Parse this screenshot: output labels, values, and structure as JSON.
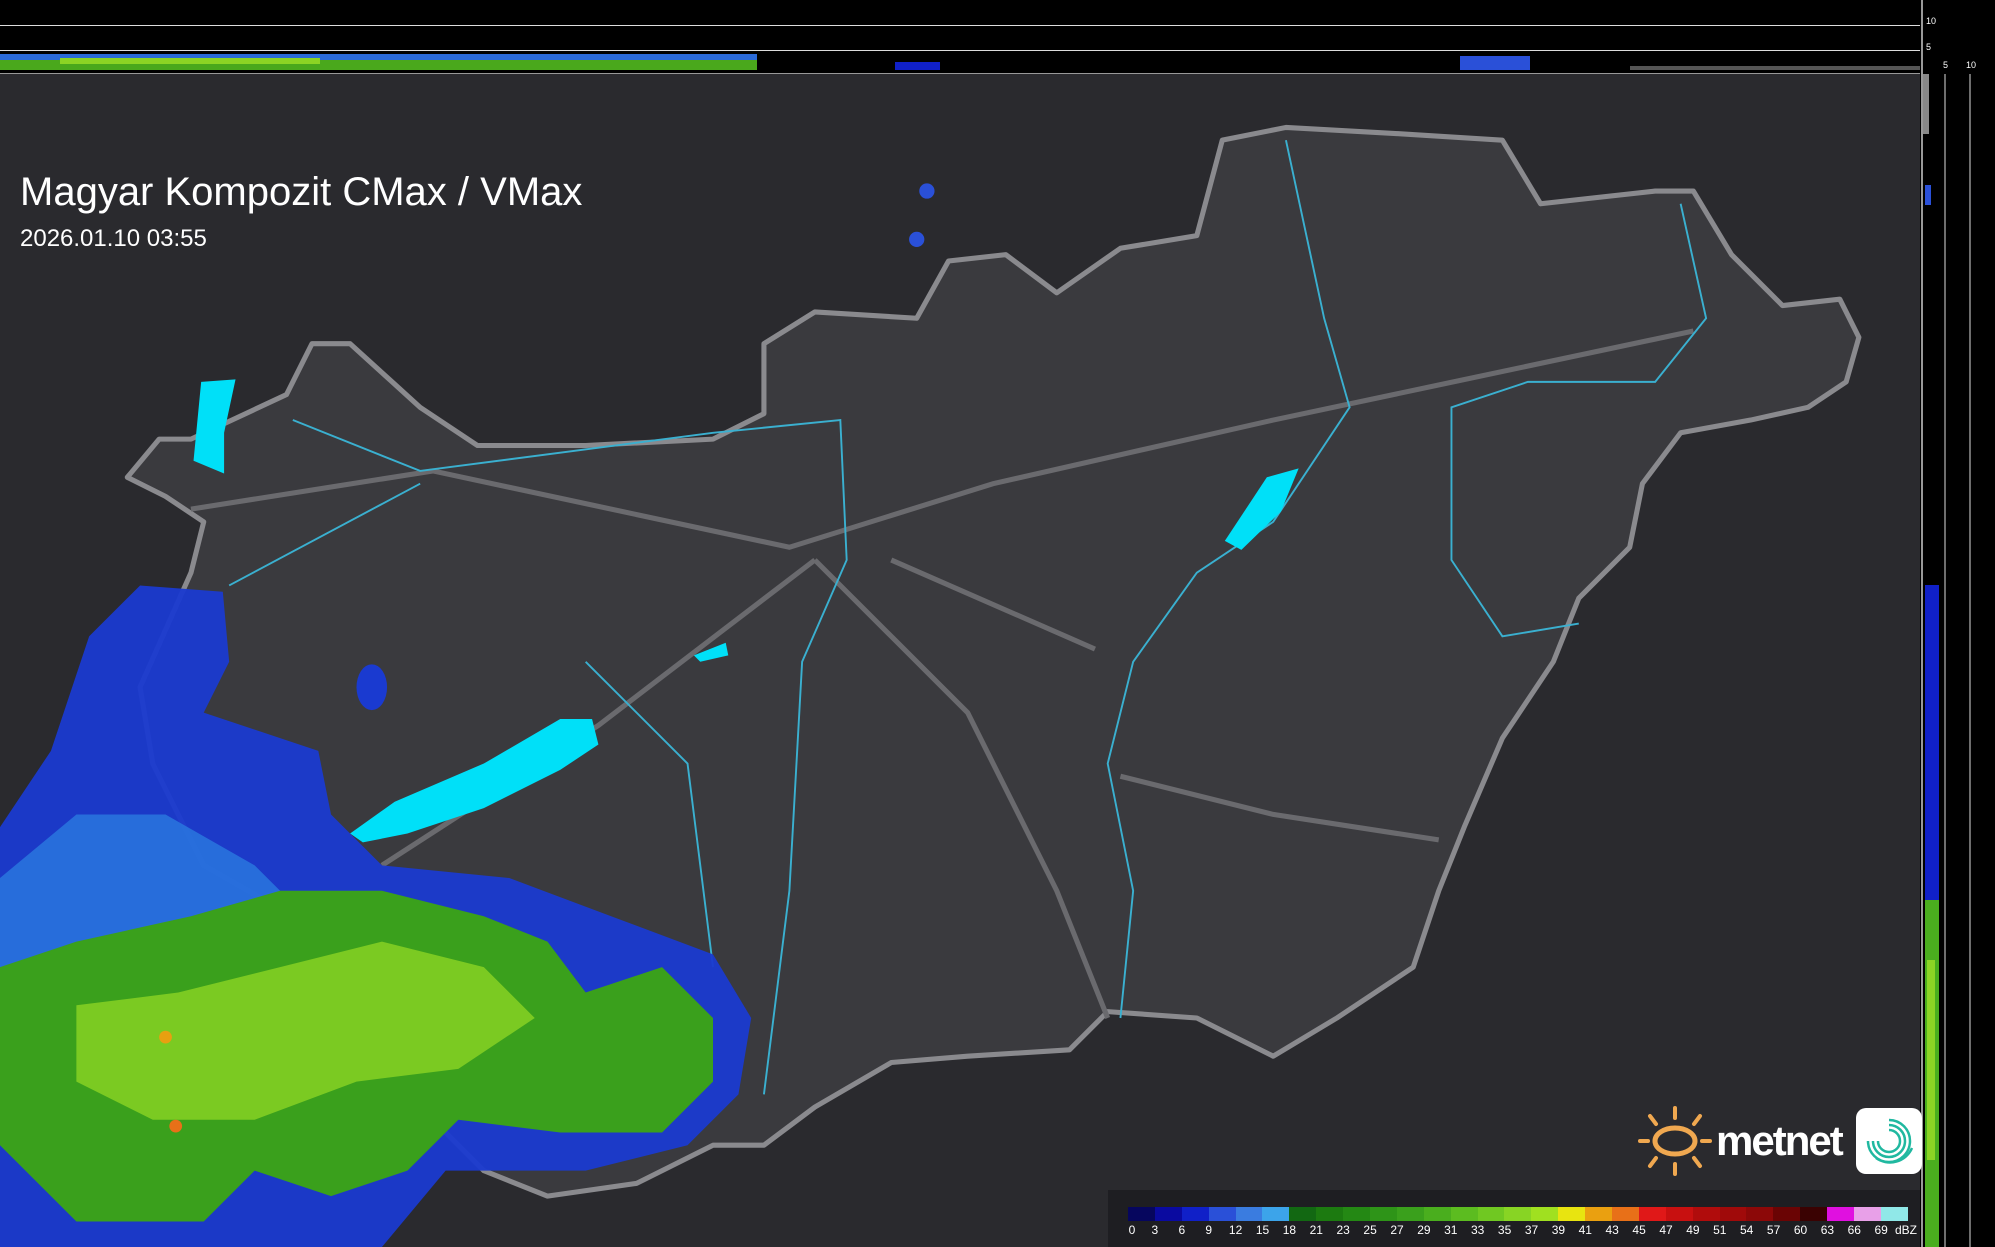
{
  "header": {
    "title": "Magyar Kompozit CMax / VMax",
    "timestamp": "2026.01.10 03:55"
  },
  "profile_axes": {
    "top_ticks": [
      "10",
      "5"
    ],
    "right_ticks": [
      "5",
      "10"
    ]
  },
  "legend": {
    "unit": "dBZ",
    "labels": [
      "0",
      "3",
      "6",
      "9",
      "12",
      "15",
      "18",
      "21",
      "23",
      "25",
      "27",
      "29",
      "31",
      "33",
      "35",
      "37",
      "39",
      "41",
      "43",
      "45",
      "47",
      "49",
      "51",
      "54",
      "57",
      "60",
      "63",
      "66",
      "69"
    ],
    "colors": [
      "#06065e",
      "#0a0aa0",
      "#1020c8",
      "#2a50d8",
      "#3a7ce0",
      "#3ca4ea",
      "#126812",
      "#1c7a10",
      "#248814",
      "#2e9418",
      "#3aa01c",
      "#4aae1e",
      "#5cbc20",
      "#70c822",
      "#88d424",
      "#a0e020",
      "#e8e410",
      "#eaa010",
      "#e87018",
      "#e01818",
      "#c81010",
      "#b00c0c",
      "#a00a0a",
      "#8c0808",
      "#6a0404",
      "#3a0202",
      "#e010e0",
      "#e8a0e8",
      "#90e8e8"
    ]
  },
  "colors": {
    "water": "#00e0f8",
    "river": "#3ab0d0",
    "border": "#8a8a8e",
    "background": "#2a2a2e"
  },
  "logo": {
    "brand": "metnet"
  }
}
